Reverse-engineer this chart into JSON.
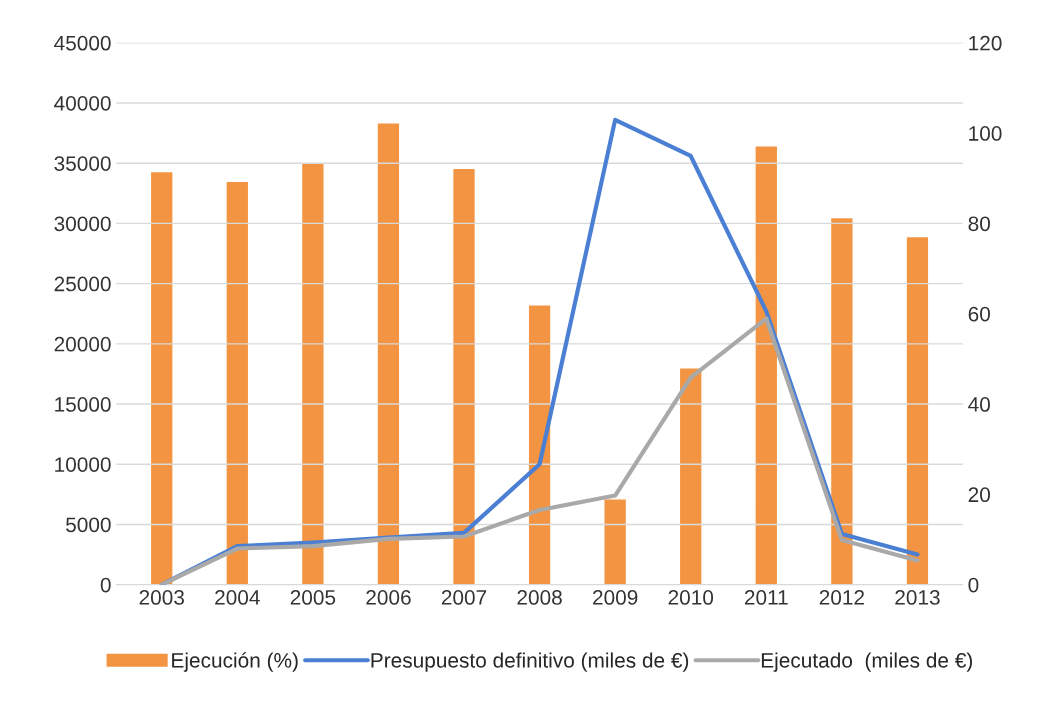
{
  "chart_data": {
    "type": "bar",
    "categories": [
      "2003",
      "2004",
      "2005",
      "2006",
      "2007",
      "2008",
      "2009",
      "2010",
      "2011",
      "2012",
      "2013"
    ],
    "series": [
      {
        "name": "Ejecución (%)",
        "axis": "y2",
        "color": "#f29441",
        "values": [
          91.5,
          89.3,
          93.3,
          102.3,
          92.2,
          62,
          19,
          48,
          97.2,
          81.3,
          77.1
        ]
      },
      {
        "name": "Presupuesto definitivo (miles de €)",
        "type": "line",
        "color": "#4a7fd4",
        "values": [
          0,
          3200,
          3500,
          3900,
          4300,
          10000,
          38600,
          35600,
          22700,
          4200,
          2500
        ]
      },
      {
        "name": "Ejecutado  (miles de €)",
        "type": "line",
        "color": "#a9a9a9",
        "values": [
          0,
          3000,
          3200,
          3800,
          4000,
          6200,
          7400,
          17200,
          22100,
          3700,
          2000
        ]
      }
    ],
    "ylim": [
      0,
      45000
    ],
    "yticks": [
      0,
      5000,
      10000,
      15000,
      20000,
      25000,
      30000,
      35000,
      40000,
      45000
    ],
    "y2lim": [
      0,
      120
    ],
    "y2ticks": [
      0,
      20,
      40,
      60,
      80,
      100,
      120
    ],
    "grid": "y",
    "legend": "bottom"
  }
}
